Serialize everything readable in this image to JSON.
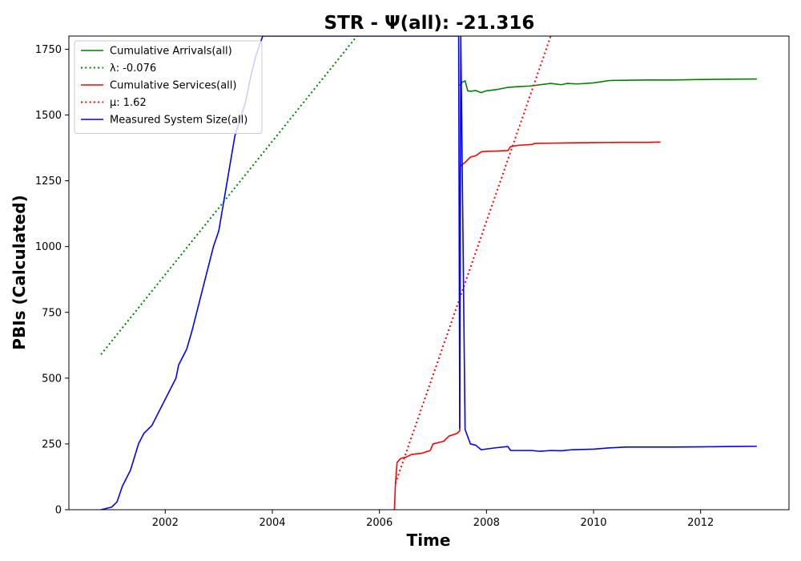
{
  "chart_data": {
    "type": "line",
    "title": "STR -  Ψ(all): -21.316",
    "xlabel": "Time",
    "ylabel": "PBIs (Calculated)",
    "xlim": [
      2000.2,
      2013.65
    ],
    "ylim": [
      0,
      1800
    ],
    "xticks": [
      2002,
      2004,
      2006,
      2008,
      2010,
      2012
    ],
    "yticks": [
      0,
      250,
      500,
      750,
      1000,
      1250,
      1500,
      1750
    ],
    "grid": false,
    "legend_position": "upper-left",
    "series": [
      {
        "name": "Cumulative Arrivals(all)",
        "color": "#008000",
        "style": "solid",
        "x": [
          2007.5,
          2007.55,
          2007.6,
          2007.65,
          2007.7,
          2007.8,
          2007.9,
          2008.0,
          2008.2,
          2008.4,
          2008.6,
          2008.8,
          2009.0,
          2009.2,
          2009.4,
          2009.5,
          2009.7,
          2010.0,
          2010.2,
          2010.3,
          2010.6,
          2011.0,
          2011.5,
          2012.0,
          2012.5,
          2013.05
        ],
        "y": [
          1612,
          1625,
          1630,
          1592,
          1590,
          1593,
          1585,
          1592,
          1597,
          1605,
          1608,
          1610,
          1615,
          1620,
          1615,
          1620,
          1618,
          1622,
          1628,
          1631,
          1632,
          1633,
          1633,
          1635,
          1636,
          1637
        ]
      },
      {
        "name": "λ: -0.076",
        "color": "#008000",
        "style": "dotted",
        "x": [
          2000.8,
          2005.58
        ],
        "y": [
          590,
          1800
        ]
      },
      {
        "name": "Cumulative Services(all)",
        "color": "#ff0000",
        "style": "solid",
        "x": [
          2006.28,
          2006.3,
          2006.33,
          2006.4,
          2006.5,
          2006.6,
          2006.8,
          2006.95,
          2007.0,
          2007.2,
          2007.3,
          2007.45,
          2007.5,
          2007.51,
          2007.6,
          2007.7,
          2007.8,
          2007.9,
          2008.0,
          2008.2,
          2008.4,
          2008.45,
          2008.6,
          2008.85,
          2008.9,
          2009.2,
          2009.5,
          2010.0,
          2010.5,
          2011.0,
          2011.25
        ],
        "y": [
          0,
          100,
          180,
          195,
          200,
          210,
          215,
          225,
          250,
          260,
          280,
          290,
          300,
          1305,
          1320,
          1340,
          1345,
          1360,
          1362,
          1363,
          1365,
          1380,
          1385,
          1388,
          1392,
          1393,
          1394,
          1395,
          1396,
          1396,
          1397
        ]
      },
      {
        "name": "μ: 1.62",
        "color": "#ff0000",
        "style": "dotted",
        "x": [
          2006.3,
          2009.2
        ],
        "y": [
          100,
          1800
        ]
      },
      {
        "name": "Measured System Size(all)",
        "color": "#0000ff",
        "style": "solid",
        "x": [
          2000.8,
          2000.9,
          2001.0,
          2001.1,
          2001.2,
          2001.35,
          2001.5,
          2001.6,
          2001.75,
          2001.9,
          2002.0,
          2002.1,
          2002.2,
          2002.25,
          2002.4,
          2002.5,
          2002.6,
          2002.75,
          2002.9,
          2003.0,
          2003.1,
          2003.2,
          2003.3,
          2003.5,
          2003.6,
          2003.7,
          2003.82,
          2007.48,
          2007.5,
          2007.52,
          2007.6,
          2007.7,
          2007.8,
          2007.9,
          2008.2,
          2008.4,
          2008.45,
          2008.7,
          2008.85,
          2009.0,
          2009.2,
          2009.4,
          2009.6,
          2010.0,
          2010.3,
          2010.6,
          2011.0,
          2011.5,
          2012.0,
          2012.5,
          2013.05
        ],
        "y": [
          0,
          5,
          10,
          30,
          90,
          150,
          250,
          290,
          320,
          380,
          420,
          460,
          500,
          550,
          610,
          680,
          760,
          880,
          1000,
          1060,
          1180,
          1300,
          1420,
          1550,
          1650,
          1730,
          1800,
          1800,
          310,
          1800,
          305,
          250,
          245,
          228,
          236,
          240,
          225,
          225,
          225,
          222,
          225,
          224,
          228,
          230,
          235,
          238,
          238,
          238,
          239,
          240,
          241
        ]
      }
    ]
  }
}
